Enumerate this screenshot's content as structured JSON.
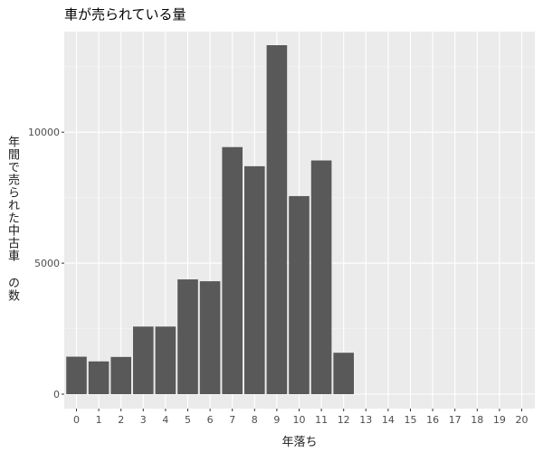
{
  "chart_data": {
    "type": "bar",
    "title": "車が売られている量",
    "xlabel": "年落ち",
    "ylabel": "年間で売られた中古車 の数",
    "categories": [
      "0",
      "1",
      "2",
      "3",
      "4",
      "5",
      "6",
      "7",
      "8",
      "9",
      "10",
      "11",
      "12",
      "13",
      "14",
      "15",
      "16",
      "17",
      "18",
      "19",
      "20"
    ],
    "values": [
      1430,
      1250,
      1420,
      2580,
      2580,
      4380,
      4310,
      9430,
      8700,
      13320,
      7560,
      8920,
      1580,
      0,
      0,
      0,
      0,
      0,
      0,
      0,
      0
    ],
    "yticks": [
      0,
      5000,
      10000
    ],
    "ylim": [
      0,
      14000
    ],
    "grid": true,
    "colors": {
      "bar": "#595959",
      "panel": "#ebebeb",
      "grid_major": "#ffffff",
      "text": "#4d4d4d"
    }
  }
}
